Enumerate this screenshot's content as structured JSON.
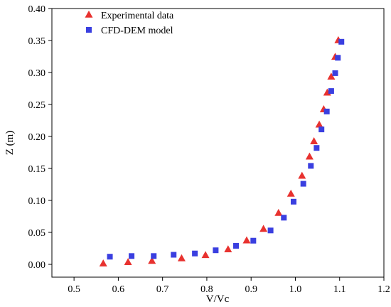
{
  "chart_data": {
    "type": "scatter",
    "title": "",
    "xlabel": "V/Vc",
    "ylabel": "Z (m)",
    "xlim": [
      0.45,
      1.2
    ],
    "ylim": [
      -0.02,
      0.4
    ],
    "xticks": [
      0.5,
      0.6,
      0.7,
      0.8,
      0.9,
      1.0,
      1.1,
      1.2
    ],
    "yticks": [
      0.0,
      0.05,
      0.1,
      0.15,
      0.2,
      0.25,
      0.3,
      0.35,
      0.4
    ],
    "xtick_labels": [
      "0.5",
      "0.6",
      "0.7",
      "0.8",
      "0.9",
      "1.0",
      "1.1",
      "1.2"
    ],
    "ytick_labels": [
      "0.00",
      "0.05",
      "0.10",
      "0.15",
      "0.20",
      "0.25",
      "0.30",
      "0.35",
      "0.40"
    ],
    "grid": false,
    "legend_position": "top-left",
    "series": [
      {
        "name": "Experimental data",
        "marker": "triangle",
        "color": "#e8322f",
        "points": [
          [
            0.566,
            0.001
          ],
          [
            0.622,
            0.003
          ],
          [
            0.676,
            0.005
          ],
          [
            0.743,
            0.009
          ],
          [
            0.797,
            0.014
          ],
          [
            0.848,
            0.023
          ],
          [
            0.89,
            0.037
          ],
          [
            0.928,
            0.055
          ],
          [
            0.962,
            0.08
          ],
          [
            0.99,
            0.11
          ],
          [
            1.015,
            0.138
          ],
          [
            1.032,
            0.168
          ],
          [
            1.042,
            0.192
          ],
          [
            1.054,
            0.218
          ],
          [
            1.064,
            0.242
          ],
          [
            1.072,
            0.268
          ],
          [
            1.081,
            0.293
          ],
          [
            1.09,
            0.324
          ],
          [
            1.097,
            0.35
          ]
        ]
      },
      {
        "name": "CFD-DEM model",
        "marker": "square",
        "color": "#3a3fe0",
        "points": [
          [
            0.581,
            0.012
          ],
          [
            0.63,
            0.013
          ],
          [
            0.68,
            0.013
          ],
          [
            0.725,
            0.015
          ],
          [
            0.773,
            0.017
          ],
          [
            0.82,
            0.022
          ],
          [
            0.866,
            0.029
          ],
          [
            0.905,
            0.037
          ],
          [
            0.944,
            0.053
          ],
          [
            0.974,
            0.073
          ],
          [
            0.996,
            0.098
          ],
          [
            1.018,
            0.126
          ],
          [
            1.035,
            0.154
          ],
          [
            1.048,
            0.182
          ],
          [
            1.059,
            0.211
          ],
          [
            1.071,
            0.239
          ],
          [
            1.081,
            0.271
          ],
          [
            1.09,
            0.299
          ],
          [
            1.096,
            0.323
          ],
          [
            1.104,
            0.348
          ]
        ]
      }
    ]
  }
}
